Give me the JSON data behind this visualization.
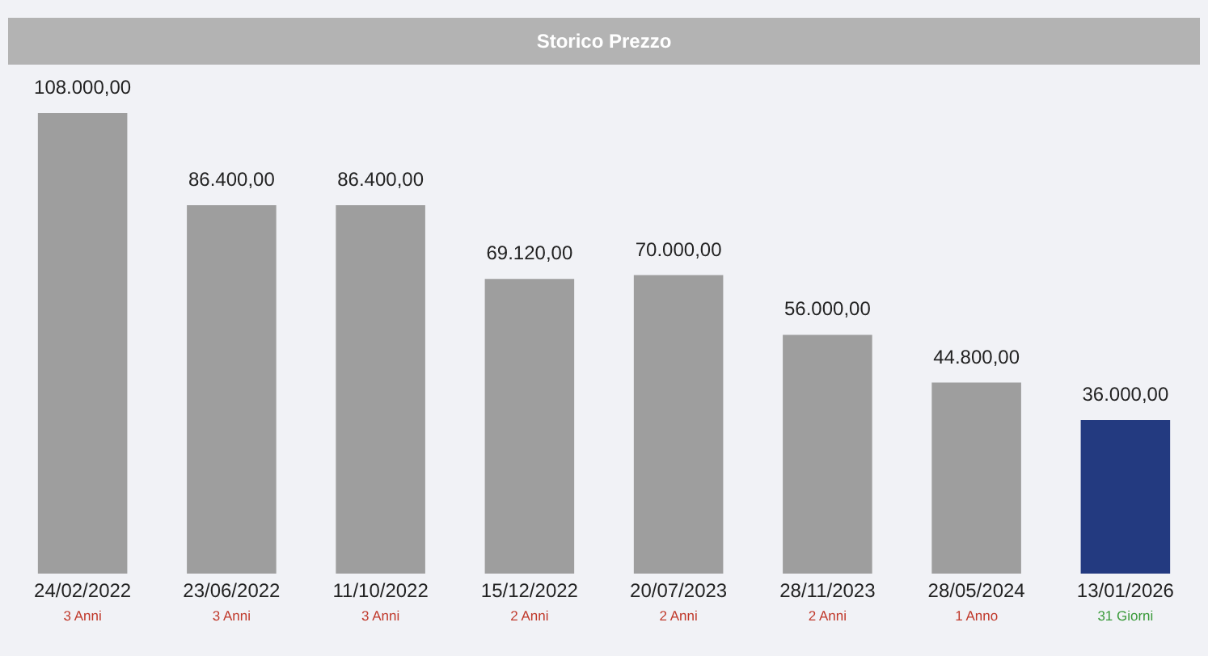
{
  "chart_data": {
    "type": "bar",
    "title": "Storico Prezzo",
    "categories": [
      "24/02/2022",
      "23/06/2022",
      "11/10/2022",
      "15/12/2022",
      "20/07/2023",
      "28/11/2023",
      "28/05/2024",
      "13/01/2026"
    ],
    "values": [
      108000,
      86400,
      86400,
      69120,
      70000,
      56000,
      44800,
      36000
    ],
    "colors": [
      "#9e9e9e",
      "#9e9e9e",
      "#9e9e9e",
      "#9e9e9e",
      "#9e9e9e",
      "#9e9e9e",
      "#9e9e9e",
      "#233a80"
    ],
    "value_labels": [
      "108.000,00",
      "86.400,00",
      "86.400,00",
      "69.120,00",
      "70.000,00",
      "56.000,00",
      "44.800,00",
      "36.000,00"
    ],
    "annotations": [
      "3 Anni",
      "3 Anni",
      "3 Anni",
      "2 Anni",
      "2 Anni",
      "2 Anni",
      "1 Anno",
      "31 Giorni"
    ]
  }
}
